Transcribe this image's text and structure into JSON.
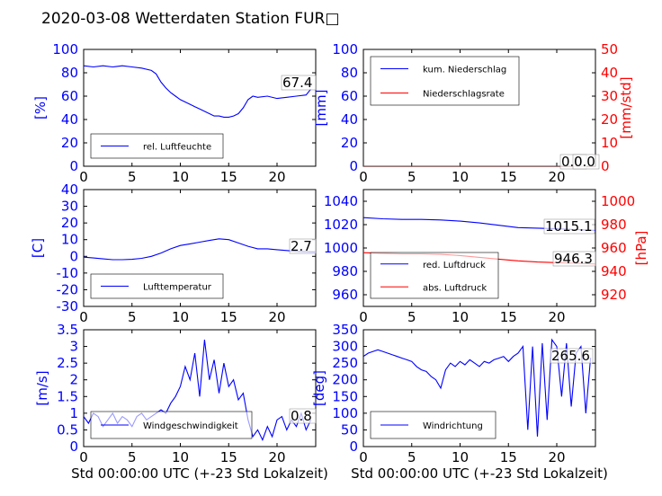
{
  "title": "2020-03-08 Wetterdaten Station FUR□",
  "xlabel": "Std 00:00:00 UTC (+-23 Std Lokalzeit)",
  "colors": {
    "primary": "#0000ff",
    "secondary": "#ff0000"
  },
  "chart_data": [
    {
      "type": "line",
      "ylabel": "[%]",
      "xlim": [
        0,
        24
      ],
      "ylim": [
        0,
        100
      ],
      "yticks": [
        0,
        20,
        40,
        60,
        80,
        100
      ],
      "xticks": [
        0,
        5,
        10,
        15,
        20
      ],
      "legend_location": "lower-left",
      "annotations": [
        "67.4"
      ],
      "series": [
        {
          "name": "rel. Luftfeuchte",
          "axis": "left",
          "x": [
            0,
            1,
            2,
            3,
            4,
            5,
            6,
            7,
            7.5,
            8,
            8.5,
            9,
            9.5,
            10,
            10.5,
            11,
            11.5,
            12,
            12.5,
            13,
            13.5,
            14,
            14.5,
            15,
            15.5,
            16,
            16.5,
            17,
            17.5,
            18,
            19,
            20,
            21,
            22,
            23,
            23.5
          ],
          "y": [
            86,
            85,
            86,
            85,
            86,
            85,
            84,
            82,
            79,
            72,
            67,
            63,
            60,
            57,
            55,
            53,
            51,
            49,
            47,
            45,
            43,
            43,
            42,
            42,
            43,
            45,
            50,
            57,
            60,
            59,
            60,
            58,
            59,
            60,
            61,
            66
          ]
        }
      ]
    },
    {
      "type": "line",
      "ylabel": "[mm]",
      "ylabel_right": "[mm/std]",
      "xlim": [
        0,
        24
      ],
      "ylim": [
        0,
        100
      ],
      "ylim_right": [
        0,
        50
      ],
      "yticks": [
        0,
        20,
        40,
        60,
        80,
        100
      ],
      "yticks_right": [
        0,
        10,
        20,
        30,
        40,
        50
      ],
      "xticks": [
        0,
        5,
        10,
        15,
        20
      ],
      "legend_location": "upper-left",
      "annotations": [
        "0.0",
        "0.0"
      ],
      "series": [
        {
          "name": "kum. Niederschlag",
          "axis": "left",
          "x": [
            0,
            24
          ],
          "y": [
            0,
            0
          ]
        },
        {
          "name": "Niederschlagsrate",
          "axis": "right",
          "x": [
            0,
            24
          ],
          "y": [
            0,
            0
          ]
        }
      ]
    },
    {
      "type": "line",
      "ylabel": "[C]",
      "xlim": [
        0,
        24
      ],
      "ylim": [
        -30,
        40
      ],
      "yticks": [
        -30,
        -20,
        -10,
        0,
        10,
        20,
        30,
        40
      ],
      "xticks": [
        0,
        5,
        10,
        15,
        20
      ],
      "legend_location": "lower-left",
      "annotations": [
        "2.7"
      ],
      "series": [
        {
          "name": "Lufttemperatur",
          "axis": "left",
          "x": [
            0,
            1,
            2,
            3,
            4,
            5,
            6,
            7,
            8,
            9,
            10,
            11,
            12,
            13,
            14,
            15,
            16,
            17,
            18,
            19,
            20,
            21,
            22,
            23,
            24
          ],
          "y": [
            -0.5,
            -1,
            -1.5,
            -2,
            -2,
            -1.8,
            -1.2,
            0,
            2,
            4.5,
            6.5,
            7.5,
            8.5,
            9.5,
            10.5,
            10,
            8,
            6,
            4.5,
            4.5,
            4,
            3.5,
            3,
            2.8,
            2.7
          ]
        }
      ]
    },
    {
      "type": "line",
      "ylabel_right": "[hPa]",
      "xlim": [
        0,
        24
      ],
      "ylim": [
        950,
        1050
      ],
      "ylim_right": [
        910,
        1010
      ],
      "yticks": [
        960,
        980,
        1000,
        1020,
        1040
      ],
      "yticks_right": [
        920,
        940,
        960,
        980,
        1000
      ],
      "xticks": [
        0,
        5,
        10,
        15,
        20
      ],
      "legend_location": "lower-left",
      "annotations": [
        "1015.1",
        "946.3"
      ],
      "series": [
        {
          "name": "red. Luftdruck",
          "axis": "left",
          "x": [
            0,
            2,
            4,
            6,
            8,
            10,
            12,
            14,
            16,
            18,
            20,
            22,
            24
          ],
          "y": [
            1026,
            1025,
            1024.5,
            1024.5,
            1024,
            1023,
            1021.5,
            1019.5,
            1017.5,
            1017,
            1016.5,
            1015.8,
            1015.1
          ]
        },
        {
          "name": "abs. Luftdruck",
          "axis": "right",
          "x": [
            0,
            2,
            4,
            6,
            8,
            10,
            12,
            14,
            16,
            18,
            20,
            22,
            24
          ],
          "y": [
            956,
            955.5,
            955,
            955,
            954.5,
            953.5,
            952,
            950.5,
            949,
            948,
            947.5,
            947,
            946.3
          ]
        }
      ]
    },
    {
      "type": "line",
      "ylabel": "[m/s]",
      "xlim": [
        0,
        24
      ],
      "ylim": [
        0,
        3.5
      ],
      "yticks": [
        0.0,
        0.5,
        1.0,
        1.5,
        2.0,
        2.5,
        3.0,
        3.5
      ],
      "xticks": [
        0,
        5,
        10,
        15,
        20
      ],
      "legend_location": "lower-left",
      "annotations": [
        "0.8"
      ],
      "series": [
        {
          "name": "Windgeschwindigkeit",
          "axis": "left",
          "x": [
            0,
            0.5,
            1,
            1.5,
            2,
            2.5,
            3,
            3.5,
            4,
            4.5,
            5,
            5.5,
            6,
            6.5,
            7,
            7.5,
            8,
            8.5,
            9,
            9.5,
            10,
            10.5,
            11,
            11.5,
            12,
            12.5,
            13,
            13.5,
            14,
            14.5,
            15,
            15.5,
            16,
            16.5,
            17,
            17.5,
            18,
            18.5,
            19,
            19.5,
            20,
            20.5,
            21,
            21.5,
            22,
            22.5,
            23,
            23.5
          ],
          "y": [
            0.9,
            0.7,
            1.0,
            0.9,
            0.6,
            0.8,
            1.0,
            0.7,
            0.9,
            0.8,
            0.6,
            0.9,
            1.0,
            0.8,
            0.9,
            1.0,
            1.1,
            1.0,
            1.3,
            1.5,
            1.8,
            2.4,
            2.0,
            2.8,
            1.5,
            3.2,
            2.0,
            2.6,
            1.6,
            2.5,
            1.8,
            2.0,
            1.4,
            1.6,
            0.8,
            0.3,
            0.5,
            0.2,
            0.6,
            0.3,
            0.8,
            0.9,
            0.5,
            0.8,
            0.6,
            1.0,
            0.5,
            0.8
          ]
        }
      ]
    },
    {
      "type": "line",
      "ylabel": "[deg]",
      "xlim": [
        0,
        24
      ],
      "ylim": [
        0,
        350
      ],
      "yticks": [
        0,
        50,
        100,
        150,
        200,
        250,
        300,
        350
      ],
      "xticks": [
        0,
        5,
        10,
        15,
        20
      ],
      "legend_location": "lower-left",
      "annotations": [
        "265.6"
      ],
      "series": [
        {
          "name": "Windrichtung",
          "axis": "left",
          "x": [
            0,
            0.5,
            1,
            1.5,
            2,
            2.5,
            3,
            3.5,
            4,
            4.5,
            5,
            5.5,
            6,
            6.5,
            7,
            7.5,
            8,
            8.5,
            9,
            9.5,
            10,
            10.5,
            11,
            11.5,
            12,
            12.5,
            13,
            13.5,
            14,
            14.5,
            15,
            15.5,
            16,
            16.5,
            17,
            17.5,
            18,
            18.5,
            19,
            19.5,
            20,
            20.5,
            21,
            21.5,
            22,
            22.5,
            23,
            23.5
          ],
          "y": [
            270,
            280,
            285,
            290,
            285,
            280,
            275,
            270,
            265,
            260,
            255,
            240,
            230,
            225,
            210,
            200,
            175,
            230,
            250,
            240,
            255,
            245,
            260,
            250,
            240,
            255,
            250,
            260,
            265,
            270,
            255,
            270,
            280,
            300,
            50,
            300,
            30,
            310,
            80,
            320,
            300,
            150,
            310,
            120,
            280,
            300,
            100,
            266
          ]
        }
      ]
    }
  ]
}
